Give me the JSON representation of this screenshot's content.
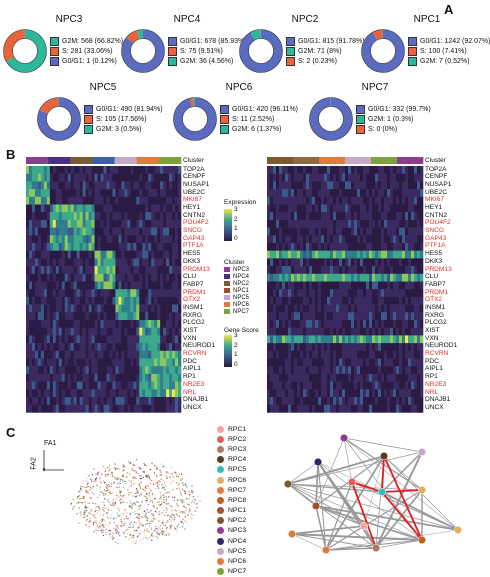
{
  "panels": {
    "a": "A",
    "b": "B",
    "c": "C"
  },
  "colors": {
    "g0g1": "#5b6bc0",
    "s": "#e8643a",
    "g2m": "#2db89a"
  },
  "donuts": [
    {
      "title": "NPC3",
      "fractions": [
        0.6682,
        0.3306,
        0.0012
      ],
      "order": [
        "g2m",
        "s",
        "g0g1"
      ],
      "legend": [
        {
          "color_key": "g2m",
          "label": "G2M: 568 (66.82%)"
        },
        {
          "color_key": "s",
          "label": "S: 281 (33.06%)"
        },
        {
          "color_key": "g0g1",
          "label": "G0/G1: 1 (0.12%)"
        }
      ]
    },
    {
      "title": "NPC4",
      "fractions": [
        0.8593,
        0.0951,
        0.0456
      ],
      "order": [
        "g0g1",
        "s",
        "g2m"
      ],
      "legend": [
        {
          "color_key": "g0g1",
          "label": "G0/G1: 678 (85.93%)"
        },
        {
          "color_key": "s",
          "label": "S: 75 (9.51%)"
        },
        {
          "color_key": "g2m",
          "label": "G2M: 36 (4.56%)"
        }
      ]
    },
    {
      "title": "NPC2",
      "fractions": [
        0.9178,
        0.0799,
        0.0023
      ],
      "order": [
        "g0g1",
        "g2m",
        "s"
      ],
      "legend": [
        {
          "color_key": "g0g1",
          "label": "G0/G1: 815 (91.78%)"
        },
        {
          "color_key": "g2m",
          "label": "G2M: 71 (8%)"
        },
        {
          "color_key": "s",
          "label": "S: 2 (0.23%)"
        }
      ]
    },
    {
      "title": "NPC1",
      "fractions": [
        0.9207,
        0.0741,
        0.0052
      ],
      "order": [
        "g0g1",
        "s",
        "g2m"
      ],
      "legend": [
        {
          "color_key": "g0g1",
          "label": "G0/G1: 1242 (92.07%)"
        },
        {
          "color_key": "s",
          "label": "S: 100 (7.41%)"
        },
        {
          "color_key": "g2m",
          "label": "G2M: 7 (0.52%)"
        }
      ]
    },
    {
      "title": "NPC5",
      "fractions": [
        0.8194,
        0.1756,
        0.005
      ],
      "order": [
        "g0g1",
        "s",
        "g2m"
      ],
      "legend": [
        {
          "color_key": "g0g1",
          "label": "G0/G1: 490 (81.94%)"
        },
        {
          "color_key": "s",
          "label": "S: 105 (17.56%)"
        },
        {
          "color_key": "g2m",
          "label": "G2M: 3 (0.5%)"
        }
      ]
    },
    {
      "title": "NPC6",
      "fractions": [
        0.9611,
        0.0252,
        0.0137
      ],
      "order": [
        "g0g1",
        "s",
        "g2m"
      ],
      "legend": [
        {
          "color_key": "g0g1",
          "label": "G0/G1: 420 (96.11%)"
        },
        {
          "color_key": "s",
          "label": "S: 11 (2.52%)"
        },
        {
          "color_key": "g2m",
          "label": "G2M: 6 (1.37%)"
        }
      ]
    },
    {
      "title": "NPC7",
      "fractions": [
        0.997,
        0.003,
        0.0
      ],
      "order": [
        "g0g1",
        "g2m",
        "s"
      ],
      "legend": [
        {
          "color_key": "g0g1",
          "label": "G0/G1: 332 (99.7%)"
        },
        {
          "color_key": "g2m",
          "label": "G2M: 1 (0.3%)"
        },
        {
          "color_key": "s",
          "label": "S: 0 (0%)"
        }
      ]
    }
  ],
  "heatmap": {
    "cluster_label": "Cluster",
    "genes": [
      "TOP2A",
      "CENPF",
      "NUSAP1",
      "UBE2C",
      "MKI67",
      "HEY1",
      "CNTN2",
      "POU4F2",
      "SNCG",
      "GAP43",
      "PTF1A",
      "HES5",
      "DKK3",
      "PRDM13",
      "CLU",
      "FABP7",
      "PRDM1",
      "OTX2",
      "INSM1",
      "RXRG",
      "PLCG2",
      "XIST",
      "VXN",
      "NEUROD1",
      "RCVRN",
      "PDC",
      "AIPL1",
      "RP1",
      "NR2E3",
      "NRL",
      "DNAJB1",
      "UNCX"
    ],
    "red_genes": [
      "MKI67",
      "POU4F2",
      "SNCG",
      "GAP43",
      "PTF1A",
      "PRDM13",
      "PRDM1",
      "OTX2",
      "RCVRN",
      "NR2E3",
      "NRL"
    ],
    "left_cluster_colors": [
      "#8e3c8f",
      "#4b2e8a",
      "#7b5a2e",
      "#3a5fa8",
      "#c8a8c8",
      "#e07b39",
      "#7aa33a"
    ],
    "right_cluster_colors": [
      "#7b5a2e",
      "#8e6a3e",
      "#e07b39",
      "#c8a8c8",
      "#7aa33a",
      "#8e3c8f"
    ],
    "expression_legend": {
      "title": "Expression",
      "ticks": [
        "3",
        "2",
        "1",
        "0"
      ]
    },
    "cluster_legend": {
      "title": "Cluster",
      "items": [
        {
          "label": "NPC3",
          "color": "#8e3c8f"
        },
        {
          "label": "NPC4",
          "color": "#4b2e8a"
        },
        {
          "label": "NPC2",
          "color": "#7b5a2e"
        },
        {
          "label": "NPC1",
          "color": "#a0522d"
        },
        {
          "label": "NPC5",
          "color": "#c8a8c8"
        },
        {
          "label": "NPC6",
          "color": "#e07b39"
        },
        {
          "label": "NPC7",
          "color": "#7aa33a"
        }
      ]
    },
    "score_legend": {
      "title": "Gene Score",
      "ticks": [
        "3",
        "2",
        "1",
        "0"
      ]
    }
  },
  "panel_c": {
    "axis1": "FA1",
    "axis2": "FA2",
    "legend": [
      {
        "label": "RPC1",
        "color": "#f2a6a0"
      },
      {
        "label": "RPC2",
        "color": "#e06060"
      },
      {
        "label": "RPC3",
        "color": "#a77c62"
      },
      {
        "label": "RPC4",
        "color": "#5c3a28"
      },
      {
        "label": "RPC5",
        "color": "#3ab8c0"
      },
      {
        "label": "RPC6",
        "color": "#e0b060"
      },
      {
        "label": "RPC7",
        "color": "#e07a3a"
      },
      {
        "label": "RPC8",
        "color": "#c06020"
      },
      {
        "label": "NPC1",
        "color": "#a0522d"
      },
      {
        "label": "NPC2",
        "color": "#7b5a2e"
      },
      {
        "label": "NPC3",
        "color": "#8e3c8f"
      },
      {
        "label": "NPC4",
        "color": "#2e2a6a"
      },
      {
        "label": "NPC5",
        "color": "#c8a8c8"
      },
      {
        "label": "NPC6",
        "color": "#e07b39"
      },
      {
        "label": "NPC7",
        "color": "#7aa33a"
      }
    ]
  }
}
